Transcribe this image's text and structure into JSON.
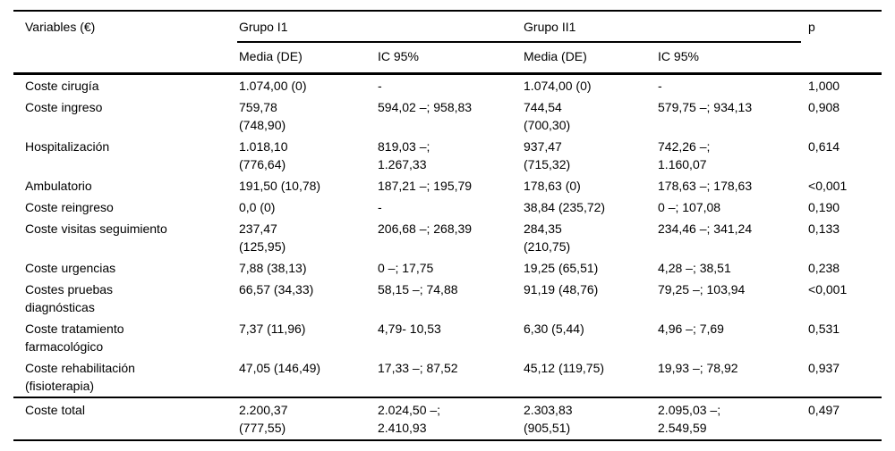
{
  "table": {
    "header": {
      "variables": "Variables (€)",
      "group1": "Grupo I1",
      "group2": "Grupo II1",
      "media": "Media (DE)",
      "ic": "IC 95%",
      "p": "p"
    },
    "rows": [
      {
        "label": "Coste cirugía",
        "g1_media": "1.074,00 (0)",
        "g1_ic": "-",
        "g2_media": "1.074,00 (0)",
        "g2_ic": "-",
        "p": "1,000"
      },
      {
        "label": "Coste ingreso",
        "g1_media": "759,78\n(748,90)",
        "g1_ic": "594,02 –; 958,83",
        "g2_media": "744,54\n(700,30)",
        "g2_ic": "579,75 –; 934,13",
        "p": "0,908"
      },
      {
        "label": "Hospitalización",
        "g1_media": "1.018,10\n(776,64)",
        "g1_ic": "819,03 –;\n1.267,33",
        "g2_media": "937,47\n(715,32)",
        "g2_ic": "742,26 –;\n1.160,07",
        "p": "0,614"
      },
      {
        "label": "Ambulatorio",
        "g1_media": "191,50 (10,78)",
        "g1_ic": "187,21 –; 195,79",
        "g2_media": "178,63 (0)",
        "g2_ic": "178,63 –; 178,63",
        "p": "<0,001"
      },
      {
        "label": "Coste reingreso",
        "g1_media": "0,0 (0)",
        "g1_ic": "-",
        "g2_media": "38,84 (235,72)",
        "g2_ic": "0 –; 107,08",
        "p": "0,190"
      },
      {
        "label": "Coste visitas seguimiento",
        "g1_media": "237,47\n(125,95)",
        "g1_ic": "206,68 –; 268,39",
        "g2_media": "284,35\n(210,75)",
        "g2_ic": "234,46 –; 341,24",
        "p": "0,133"
      },
      {
        "label": "Coste urgencias",
        "g1_media": "7,88 (38,13)",
        "g1_ic": "0 –; 17,75",
        "g2_media": "19,25 (65,51)",
        "g2_ic": "4,28 –; 38,51",
        "p": "0,238"
      },
      {
        "label": "Costes pruebas\ndiagnósticas",
        "g1_media": "66,57 (34,33)",
        "g1_ic": "58,15 –; 74,88",
        "g2_media": "91,19 (48,76)",
        "g2_ic": "79,25 –; 103,94",
        "p": "<0,001"
      },
      {
        "label": "Coste tratamiento\nfarmacológico",
        "g1_media": "7,37 (11,96)",
        "g1_ic": "4,79- 10,53",
        "g2_media": "6,30 (5,44)",
        "g2_ic": "4,96 –; 7,69",
        "p": "0,531"
      },
      {
        "label": "Coste rehabilitación\n(fisioterapia)",
        "g1_media": "47,05 (146,49)",
        "g1_ic": "17,33 –; 87,52",
        "g2_media": "45,12 (119,75)",
        "g2_ic": "19,93 –; 78,92",
        "p": "0,937"
      }
    ],
    "total_row": {
      "label": "Coste total",
      "g1_media": "2.200,37\n(777,55)",
      "g1_ic": "2.024,50 –;\n2.410,93",
      "g2_media": "2.303,83\n(905,51)",
      "g2_ic": "2.095,03 –;\n2.549,59",
      "p": "0,497"
    }
  }
}
